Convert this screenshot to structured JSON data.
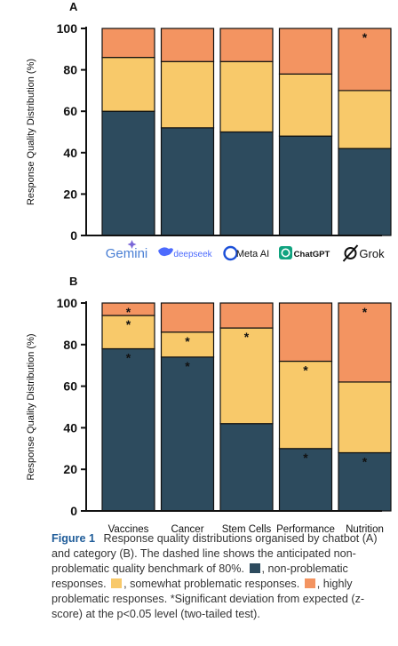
{
  "colors": {
    "non_problematic": "#2d4b5e",
    "somewhat_problematic": "#f8c96a",
    "highly_problematic": "#f39461",
    "caption_accent": "#1f5c99"
  },
  "chart_data": [
    {
      "panel": "A",
      "type": "bar",
      "stacked": true,
      "ylabel": "Response Quality Distribution (%)",
      "ylim": [
        0,
        100
      ],
      "yticks": [
        0,
        20,
        40,
        60,
        80,
        100
      ],
      "categories": [
        "Gemini",
        "deepseek",
        "Meta AI",
        "ChatGPT",
        "Grok"
      ],
      "category_icons": [
        "gemini-logo-icon",
        "deepseek-whale-icon",
        "meta-ai-ring-icon",
        "chatgpt-logo-icon",
        "grok-logo-icon"
      ],
      "series": [
        {
          "name": "non-problematic",
          "values": [
            60,
            52,
            50,
            48,
            42
          ]
        },
        {
          "name": "somewhat problematic",
          "values": [
            26,
            32,
            34,
            30,
            28
          ]
        },
        {
          "name": "highly problematic",
          "values": [
            14,
            16,
            16,
            22,
            30
          ]
        }
      ],
      "significance": [
        {
          "category": "Grok",
          "series": "highly problematic",
          "label": "*"
        }
      ]
    },
    {
      "panel": "B",
      "type": "bar",
      "stacked": true,
      "ylabel": "Response Quality Distribution (%)",
      "ylim": [
        0,
        100
      ],
      "yticks": [
        0,
        20,
        40,
        60,
        80,
        100
      ],
      "categories": [
        "Vaccines",
        "Cancer",
        "Stem Cells",
        "Performance",
        "Nutrition"
      ],
      "series": [
        {
          "name": "non-problematic",
          "values": [
            78,
            74,
            42,
            30,
            28
          ]
        },
        {
          "name": "somewhat problematic",
          "values": [
            16,
            12,
            46,
            42,
            34
          ]
        },
        {
          "name": "highly problematic",
          "values": [
            6,
            14,
            12,
            28,
            38
          ]
        }
      ],
      "significance": [
        {
          "category": "Vaccines",
          "series": "non-problematic",
          "label": "*"
        },
        {
          "category": "Vaccines",
          "series": "somewhat problematic",
          "label": "*"
        },
        {
          "category": "Vaccines",
          "series": "highly problematic",
          "label": "*"
        },
        {
          "category": "Cancer",
          "series": "non-problematic",
          "label": "*"
        },
        {
          "category": "Cancer",
          "series": "somewhat problematic",
          "label": "*"
        },
        {
          "category": "Stem Cells",
          "series": "somewhat problematic",
          "label": "*"
        },
        {
          "category": "Performance",
          "series": "non-problematic",
          "label": "*"
        },
        {
          "category": "Performance",
          "series": "somewhat problematic",
          "label": "*"
        },
        {
          "category": "Nutrition",
          "series": "non-problematic",
          "label": "*"
        },
        {
          "category": "Nutrition",
          "series": "highly problematic",
          "label": "*"
        }
      ]
    }
  ],
  "caption": {
    "figure_label": "Figure 1",
    "text_main": "Response quality distributions organised by chatbot (A) and category (B). The dashed line shows the anticipated non-problematic quality benchmark of 80%.",
    "text_non": ", non-problematic responses.",
    "text_somewhat": ", somewhat problematic responses.",
    "text_highly": ", highly problematic responses. *Significant deviation from expected (z-score) at the p<0.05 level (two-tailed test)."
  }
}
